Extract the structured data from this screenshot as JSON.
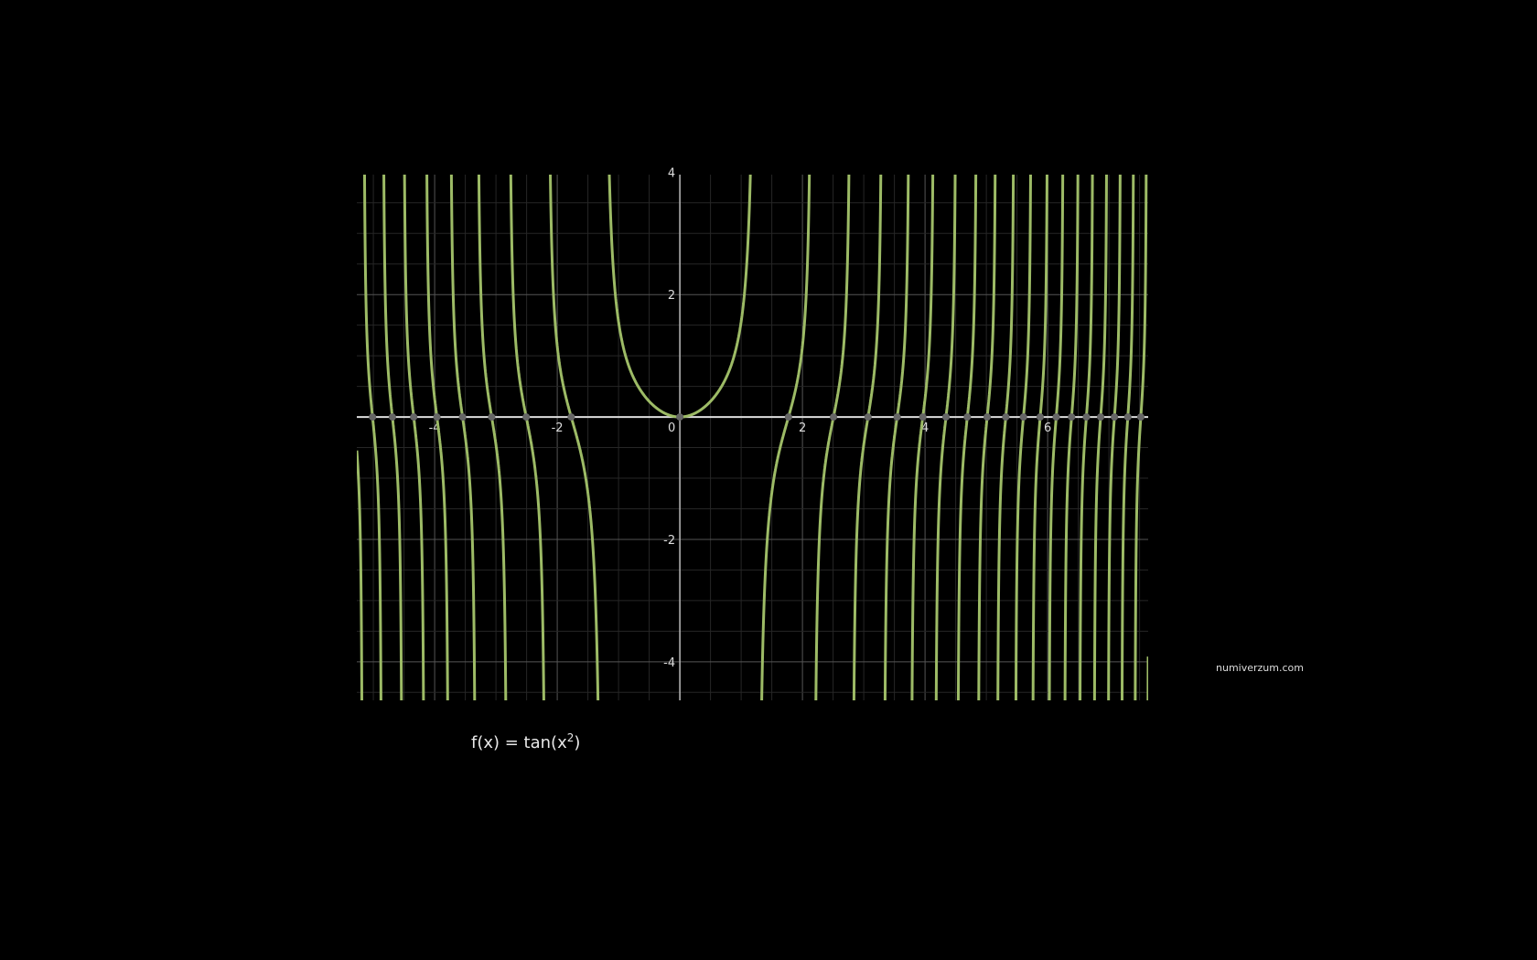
{
  "chart_data": {
    "type": "line",
    "function": "tan(x^2)",
    "xlim": [
      -5.27,
      7.64
    ],
    "ylim": [
      -4.63,
      3.96
    ],
    "x_ticks": [
      -4,
      -2,
      0,
      2,
      4,
      6
    ],
    "y_ticks": [
      4,
      2,
      -2,
      -4
    ],
    "minor_grid_step": 0.5,
    "grid": true,
    "line_color": "#9dbb66",
    "zero_marker_color": "#666666",
    "series": [
      {
        "values": "y = tan(x^2)",
        "zeros": "x = ±sqrt(kπ)"
      }
    ]
  },
  "caption": {
    "prefix": "f(x) = tan(x",
    "exponent": "2",
    "suffix": ")"
  },
  "watermark": "numiverzum.com"
}
